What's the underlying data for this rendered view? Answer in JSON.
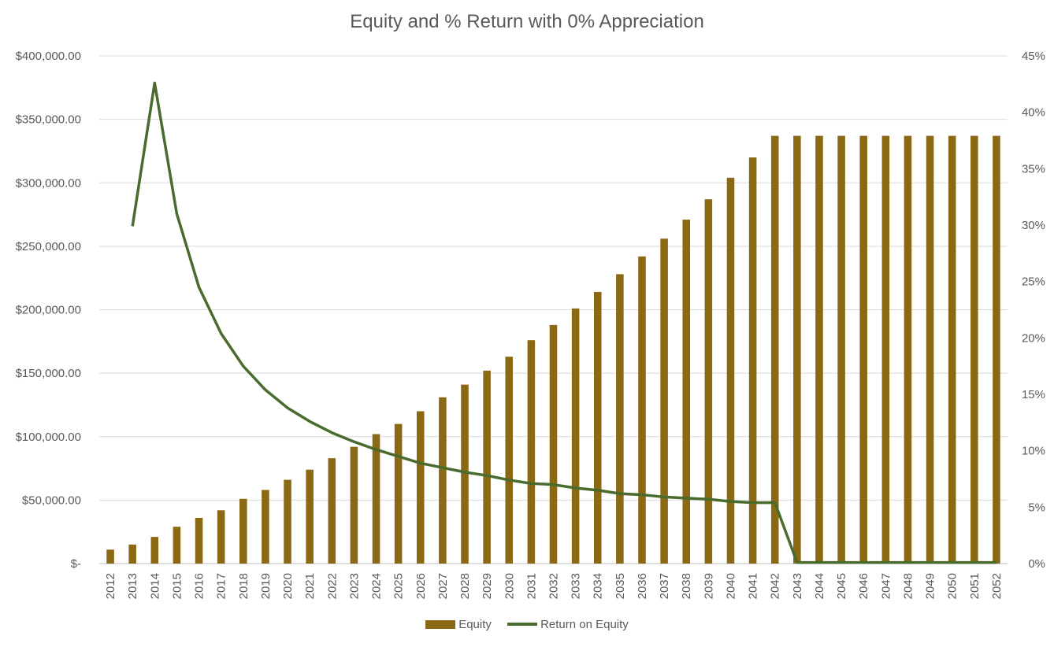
{
  "chart_data": {
    "type": "bar",
    "title": "Equity and % Return with 0% Appreciation",
    "categories": [
      "2012",
      "2013",
      "2014",
      "2015",
      "2016",
      "2017",
      "2018",
      "2019",
      "2020",
      "2021",
      "2022",
      "2023",
      "2024",
      "2025",
      "2026",
      "2027",
      "2028",
      "2029",
      "2030",
      "2031",
      "2032",
      "2033",
      "2034",
      "2035",
      "2036",
      "2037",
      "2038",
      "2039",
      "2040",
      "2041",
      "2042",
      "2043",
      "2044",
      "2045",
      "2046",
      "2047",
      "2048",
      "2049",
      "2050",
      "2051",
      "2052"
    ],
    "series": [
      {
        "name": "Equity",
        "type": "bar",
        "axis": "left",
        "color": "#8B6914",
        "values": [
          11000,
          15000,
          21000,
          29000,
          36000,
          42000,
          51000,
          58000,
          66000,
          74000,
          83000,
          92000,
          102000,
          110000,
          120000,
          131000,
          141000,
          152000,
          163000,
          176000,
          188000,
          201000,
          214000,
          228000,
          242000,
          256000,
          271000,
          287000,
          304000,
          320000,
          337000,
          337000,
          337000,
          337000,
          337000,
          337000,
          337000,
          337000,
          337000,
          337000,
          337000
        ]
      },
      {
        "name": "Return on Equity",
        "type": "line",
        "axis": "right",
        "color": "#4A6B2E",
        "values": [
          null,
          0.299,
          0.426,
          0.31,
          0.245,
          0.204,
          0.175,
          0.154,
          0.138,
          0.126,
          0.116,
          0.108,
          0.101,
          0.095,
          0.089,
          0.085,
          0.081,
          0.078,
          0.074,
          0.071,
          0.07,
          0.067,
          0.065,
          0.062,
          0.061,
          0.059,
          0.058,
          0.057,
          0.055,
          0.054,
          0.054,
          0.001,
          0.001,
          0.001,
          0.001,
          0.001,
          0.001,
          0.001,
          0.001,
          0.001,
          0.001
        ]
      }
    ],
    "y_left": {
      "min": 0,
      "max": 400000,
      "ticks": [
        0,
        50000,
        100000,
        150000,
        200000,
        250000,
        300000,
        350000,
        400000
      ],
      "tick_labels": [
        "$-",
        "$50,000.00",
        "$100,000.00",
        "$150,000.00",
        "$200,000.00",
        "$250,000.00",
        "$300,000.00",
        "$350,000.00",
        "$400,000.00"
      ]
    },
    "y_right": {
      "min": 0,
      "max": 0.45,
      "ticks": [
        0,
        0.05,
        0.1,
        0.15,
        0.2,
        0.25,
        0.3,
        0.35,
        0.4,
        0.45
      ],
      "tick_labels": [
        "0%",
        "5%",
        "10%",
        "15%",
        "20%",
        "25%",
        "30%",
        "35%",
        "40%",
        "45%"
      ]
    },
    "grid": true,
    "legend": "bottom-center"
  }
}
